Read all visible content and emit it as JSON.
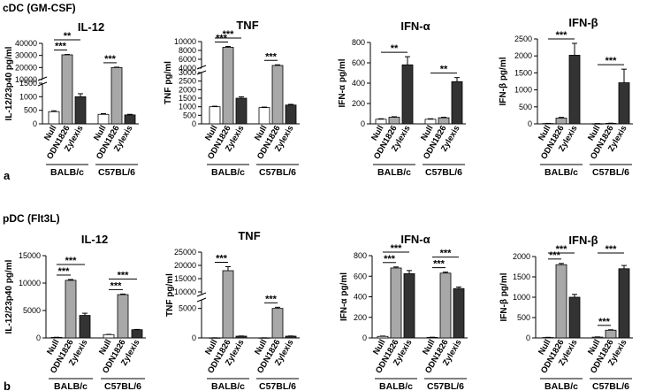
{
  "figure": {
    "section_a_title": "cDC (GM-CSF)",
    "section_b_title": "pDC (Flt3L)",
    "panel_a_label": "a",
    "panel_b_label": "b"
  },
  "colors": {
    "null": "#ffffff",
    "odn": "#a8a8a8",
    "zylexis": "#333333",
    "axis": "#000000"
  },
  "chart_data": [
    {
      "id": "cdc-il12",
      "type": "bar",
      "title": "IL-12",
      "ylabel": "IL-12/23p40 pg/ml",
      "categories": [
        "Null",
        "ODN1826",
        "Zylexis",
        "Null",
        "ODN1826",
        "Zylexis"
      ],
      "groups": [
        "BALB/c",
        "C57BL/6"
      ],
      "values": [
        450,
        30500,
        1000,
        350,
        20000,
        330
      ],
      "errors": [
        30,
        300,
        110,
        25,
        300,
        20
      ],
      "yticks": [
        "0",
        "500",
        "1000",
        "1500",
        "10000",
        "20000",
        "30000",
        "40000"
      ],
      "ylim": [
        0,
        40000
      ],
      "axis_break": true,
      "significance": [
        {
          "pair": [
            0,
            1
          ],
          "label": "***"
        },
        {
          "pair": [
            0,
            2
          ],
          "label": "**"
        },
        {
          "pair": [
            3,
            4
          ],
          "label": "***"
        }
      ]
    },
    {
      "id": "cdc-tnf",
      "type": "bar",
      "title": "TNF",
      "ylabel": "TNF pg/ml",
      "categories": [
        "Null",
        "ODN1826",
        "Zylexis",
        "Null",
        "ODN1826",
        "Zylexis"
      ],
      "groups": [
        "BALB/c",
        "C57BL/6"
      ],
      "values": [
        1000,
        8700,
        1500,
        950,
        4600,
        1100
      ],
      "errors": [
        30,
        200,
        80,
        30,
        150,
        40
      ],
      "yticks": [
        "0",
        "500",
        "1000",
        "1500",
        "2000",
        "2500",
        "3000",
        "4000",
        "6000",
        "8000",
        "10000"
      ],
      "ylim": [
        0,
        10000
      ],
      "axis_break": true,
      "significance": [
        {
          "pair": [
            0,
            1
          ],
          "label": "***"
        },
        {
          "pair": [
            0,
            2
          ],
          "label": "***"
        },
        {
          "pair": [
            3,
            4
          ],
          "label": "***"
        }
      ]
    },
    {
      "id": "cdc-ifna",
      "type": "bar",
      "title": "IFN-α",
      "ylabel": "IFN-α  pg/ml",
      "categories": [
        "Null",
        "ODN1826",
        "Zylexis",
        "Null",
        "ODN1826",
        "Zylexis"
      ],
      "groups": [
        "BALB/c",
        "C57BL/6"
      ],
      "values": [
        45,
        65,
        580,
        45,
        60,
        415
      ],
      "errors": [
        5,
        5,
        80,
        5,
        5,
        40
      ],
      "yticks": [
        "0",
        "200",
        "400",
        "600",
        "800"
      ],
      "ylim": [
        0,
        800
      ],
      "axis_break": false,
      "significance": [
        {
          "pair": [
            0,
            2
          ],
          "label": "**"
        },
        {
          "pair": [
            3,
            5
          ],
          "label": "**"
        }
      ]
    },
    {
      "id": "cdc-ifnb",
      "type": "bar",
      "title": "IFN-β",
      "ylabel": "IFN-β  pg/ml",
      "categories": [
        "Null",
        "ODN1826",
        "Zylexis",
        "Null",
        "ODN1826",
        "Zylexis"
      ],
      "groups": [
        "BALB/c",
        "C57BL/6"
      ],
      "values": [
        10,
        170,
        2020,
        5,
        15,
        1210
      ],
      "errors": [
        5,
        20,
        350,
        5,
        5,
        400
      ],
      "yticks": [
        "0",
        "500",
        "1000",
        "1500",
        "2000",
        "2500"
      ],
      "ylim": [
        0,
        2500
      ],
      "axis_break": false,
      "significance": [
        {
          "pair": [
            0,
            2
          ],
          "label": "***"
        },
        {
          "pair": [
            3,
            5
          ],
          "label": "***"
        }
      ]
    },
    {
      "id": "pdc-il12",
      "type": "bar",
      "title": "IL-12",
      "ylabel": "IL-12/23p40 pg/ml",
      "categories": [
        "Null",
        "ODN1826",
        "Zylexis",
        "Null",
        "ODN1826",
        "Zylexis"
      ],
      "groups": [
        "BALB/c",
        "C57BL/6"
      ],
      "values": [
        100,
        10500,
        4100,
        600,
        7900,
        1500
      ],
      "errors": [
        20,
        150,
        400,
        50,
        100,
        50
      ],
      "yticks": [
        "0",
        "5000",
        "10000",
        "15000"
      ],
      "ylim": [
        0,
        15000
      ],
      "axis_break": false,
      "significance": [
        {
          "pair": [
            0,
            1
          ],
          "label": "***"
        },
        {
          "pair": [
            0,
            2
          ],
          "label": "***"
        },
        {
          "pair": [
            3,
            4
          ],
          "label": "***"
        },
        {
          "pair": [
            3,
            5
          ],
          "label": "***"
        }
      ]
    },
    {
      "id": "pdc-tnf",
      "type": "bar",
      "title": "TNF",
      "ylabel": "TNF pg/ml",
      "categories": [
        "Null",
        "ODN1826",
        "Zylexis",
        "Null",
        "ODN1826",
        "Zylexis"
      ],
      "groups": [
        "BALB/c",
        "C57BL/6"
      ],
      "values": [
        20,
        18000,
        300,
        20,
        5000,
        300
      ],
      "errors": [
        5,
        1500,
        30,
        5,
        200,
        30
      ],
      "yticks": [
        "0",
        "5000",
        "10000",
        "15000",
        "20000",
        "25000"
      ],
      "ylim": [
        0,
        25000
      ],
      "axis_break": true,
      "significance": [
        {
          "pair": [
            0,
            1
          ],
          "label": "***"
        },
        {
          "pair": [
            3,
            4
          ],
          "label": "***"
        }
      ]
    },
    {
      "id": "pdc-ifna",
      "type": "bar",
      "title": "IFN-α",
      "ylabel": "IFN-α  pg/ml",
      "categories": [
        "Null",
        "ODN1826",
        "Zylexis",
        "Null",
        "ODN1826",
        "Zylexis"
      ],
      "groups": [
        "BALB/c",
        "C57BL/6"
      ],
      "values": [
        15,
        680,
        625,
        5,
        630,
        480
      ],
      "errors": [
        3,
        10,
        30,
        2,
        10,
        15
      ],
      "yticks": [
        "0",
        "200",
        "400",
        "600",
        "800"
      ],
      "ylim": [
        0,
        800
      ],
      "axis_break": false,
      "significance": [
        {
          "pair": [
            0,
            1
          ],
          "label": "***"
        },
        {
          "pair": [
            0,
            2
          ],
          "label": "***"
        },
        {
          "pair": [
            3,
            4
          ],
          "label": "***"
        },
        {
          "pair": [
            3,
            5
          ],
          "label": "***"
        }
      ]
    },
    {
      "id": "pdc-ifnb",
      "type": "bar",
      "title": "IFN-β",
      "ylabel": "IFN-β  pg/ml",
      "categories": [
        "Null",
        "ODN1826",
        "Zylexis",
        "Null",
        "ODN1826",
        "Zylexis"
      ],
      "groups": [
        "BALB/c",
        "C57BL/6"
      ],
      "values": [
        10,
        1800,
        1000,
        20,
        190,
        1700
      ],
      "errors": [
        5,
        30,
        70,
        5,
        10,
        80
      ],
      "yticks": [
        "0",
        "500",
        "1000",
        "1500",
        "2000"
      ],
      "ylim": [
        0,
        2000
      ],
      "axis_break": false,
      "significance": [
        {
          "pair": [
            0,
            1
          ],
          "label": "***"
        },
        {
          "pair": [
            0,
            2
          ],
          "label": "***"
        },
        {
          "pair": [
            3,
            4
          ],
          "label": "***"
        },
        {
          "pair": [
            3,
            5
          ],
          "label": "***"
        }
      ]
    }
  ]
}
